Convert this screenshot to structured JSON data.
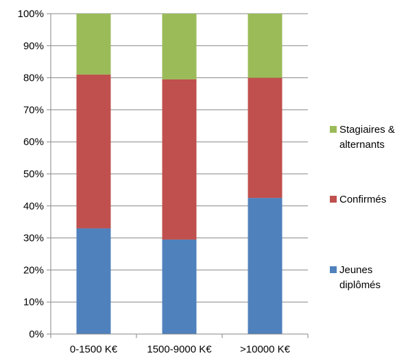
{
  "chart_data": {
    "type": "bar",
    "stacked": true,
    "percent": true,
    "categories": [
      "0-1500 K€",
      "1500-9000 K€",
      ">10000 K€"
    ],
    "series": [
      {
        "name": "Jeunes diplômés",
        "color": "#4f81bd",
        "values": [
          33,
          29.5,
          42.5
        ]
      },
      {
        "name": "Confirmés",
        "color": "#c0504d",
        "values": [
          48,
          50,
          37.5
        ]
      },
      {
        "name": "Stagiaires & alternants",
        "color": "#9bbb59",
        "values": [
          19,
          20.5,
          20
        ]
      }
    ],
    "ylim": [
      0,
      100
    ],
    "y_ticks": [
      "0%",
      "10%",
      "20%",
      "30%",
      "40%",
      "50%",
      "60%",
      "70%",
      "80%",
      "90%",
      "100%"
    ],
    "grid": true,
    "legend": {
      "placement": "right",
      "order": [
        "Stagiaires & alternants",
        "Confirmés",
        "Jeunes diplômés"
      ],
      "lines": {
        "Stagiaires & alternants": [
          "Stagiaires &",
          "alternants"
        ],
        "Confirmés": [
          "Confirmés"
        ],
        "Jeunes diplômés": [
          "Jeunes",
          "diplômés"
        ]
      }
    }
  }
}
